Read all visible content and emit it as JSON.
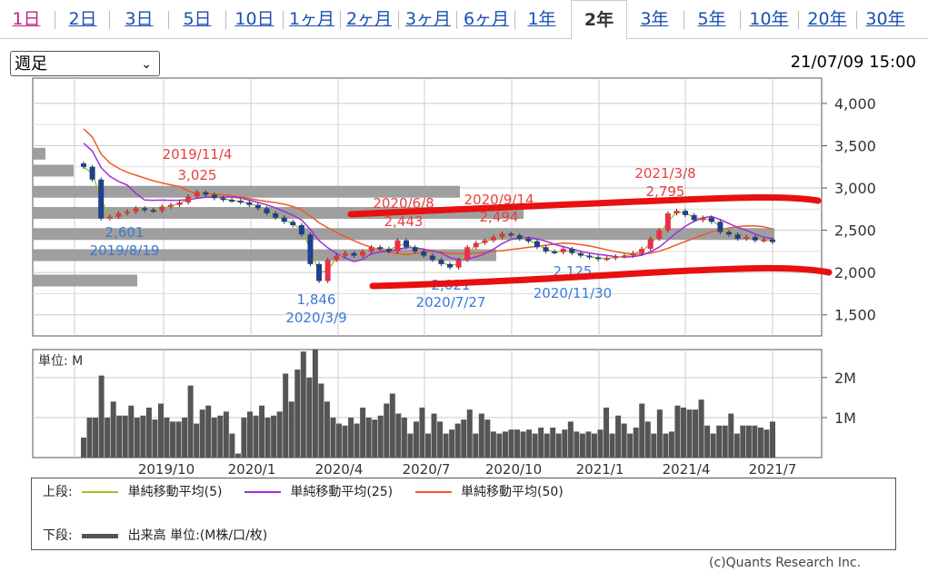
{
  "tabs": [
    {
      "label": "1日",
      "x": 0
    },
    {
      "label": "2日"
    },
    {
      "label": "3日"
    },
    {
      "label": "5日"
    },
    {
      "label": "10日"
    },
    {
      "label": "1ヶ月"
    },
    {
      "label": "2ヶ月"
    },
    {
      "label": "3ヶ月"
    },
    {
      "label": "6ヶ月"
    },
    {
      "label": "1年"
    },
    {
      "label": "2年"
    },
    {
      "label": "3年"
    },
    {
      "label": "5年"
    },
    {
      "label": "10年"
    },
    {
      "label": "20年"
    },
    {
      "label": "30年"
    }
  ],
  "active_tab": "2年",
  "period_select": {
    "value": "週足"
  },
  "timestamp": "21/07/09 15:00",
  "colors": {
    "up": "#e8304a",
    "down": "#1f3f8f",
    "ma5": "#9dc21a",
    "ma25": "#a030d8",
    "ma50": "#f05a24",
    "volume": "#555555",
    "profile": "#9a9a9a",
    "annotation_high": "#e84040",
    "annotation_low": "#3c78d8",
    "highlight_stroke": "#e81010"
  },
  "chart_data": [
    {
      "type": "candlestick",
      "ylim": [
        1250,
        4300
      ],
      "yticks": [
        "1,500",
        "2,000",
        "2,500",
        "3,000",
        "3,500",
        "4,000"
      ],
      "ytick_values": [
        1500,
        2000,
        2500,
        3000,
        3500,
        4000
      ],
      "annotations": [
        {
          "date": "2019/11/4",
          "value": "3,025",
          "kind": "high"
        },
        {
          "date": "2019/8/19",
          "value": "2,601",
          "kind": "low"
        },
        {
          "date": "2020/3/9",
          "value": "1,846",
          "kind": "low"
        },
        {
          "date": "2020/6/8",
          "value": "2,443",
          "kind": "high"
        },
        {
          "date": "2020/7/27",
          "value": "2,021",
          "kind": "low"
        },
        {
          "date": "2020/9/14",
          "value": "2,494",
          "kind": "high"
        },
        {
          "date": "2020/11/30",
          "value": "2,125",
          "kind": "low"
        },
        {
          "date": "2021/3/8",
          "value": "2,795",
          "kind": "high"
        }
      ],
      "closes": [
        3250,
        3100,
        2640,
        2660,
        2700,
        2720,
        2760,
        2740,
        2730,
        2780,
        2800,
        2830,
        2900,
        2950,
        2920,
        2880,
        2860,
        2850,
        2830,
        2800,
        2760,
        2700,
        2650,
        2600,
        2560,
        2450,
        2100,
        1900,
        2150,
        2200,
        2230,
        2200,
        2250,
        2300,
        2280,
        2250,
        2380,
        2300,
        2250,
        2200,
        2150,
        2100,
        2060,
        2150,
        2300,
        2350,
        2380,
        2420,
        2460,
        2440,
        2400,
        2370,
        2300,
        2250,
        2240,
        2280,
        2230,
        2200,
        2180,
        2160,
        2170,
        2190,
        2200,
        2230,
        2280,
        2400,
        2500,
        2700,
        2730,
        2680,
        2620,
        2650,
        2600,
        2480,
        2450,
        2400,
        2420,
        2380,
        2390,
        2360
      ],
      "ma_series": [
        {
          "name": "単純移動平均(5)"
        },
        {
          "name": "単純移動平均(25)"
        },
        {
          "name": "単純移動平均(50)"
        }
      ]
    },
    {
      "type": "bar",
      "ylabel": "単位: M",
      "yticks": [
        "1M",
        "2M"
      ],
      "ytick_values": [
        1,
        2
      ],
      "ylim": [
        0,
        2.7
      ],
      "xticks": [
        "2019/10",
        "2020/1",
        "2020/4",
        "2020/7",
        "2020/10",
        "2021/1",
        "2021/4",
        "2021/7"
      ],
      "values": [
        0.5,
        1.0,
        1.0,
        2.05,
        1.0,
        1.4,
        1.05,
        1.05,
        1.3,
        1.0,
        1.05,
        1.25,
        0.95,
        1.35,
        1.0,
        0.9,
        0.9,
        1.0,
        1.8,
        0.85,
        1.2,
        1.3,
        1.0,
        1.05,
        1.15,
        0.6,
        0.1,
        1.0,
        1.15,
        1.05,
        1.3,
        1.0,
        1.05,
        1.15,
        2.1,
        1.4,
        2.2,
        2.65,
        2.0,
        2.7,
        1.85,
        1.4,
        1.0,
        0.85,
        0.8,
        1.0,
        0.85,
        1.25,
        1.0,
        0.95,
        1.05,
        1.35,
        1.6,
        1.1,
        1.0,
        0.6,
        0.9,
        1.25,
        0.6,
        1.1,
        0.9,
        0.6,
        0.7,
        0.85,
        0.95,
        1.2,
        0.6,
        1.1,
        0.95,
        0.65,
        0.6,
        0.65,
        0.7,
        0.7,
        0.65,
        0.7,
        0.6,
        0.75,
        0.6,
        0.75,
        0.6,
        0.7,
        0.9,
        0.65,
        0.6,
        0.65,
        0.6,
        0.7,
        1.25,
        0.6,
        1.05,
        0.85,
        0.6,
        0.75,
        1.35,
        0.9,
        0.6,
        1.2,
        0.6,
        0.65,
        1.3,
        1.25,
        1.2,
        1.2,
        1.45,
        0.8,
        0.6,
        0.8,
        0.8,
        1.1,
        0.6,
        0.8,
        0.8,
        0.8,
        0.75,
        0.7,
        0.9
      ]
    }
  ],
  "legend": {
    "upper_label": "上段:",
    "lower_label": "下段:",
    "ma5": "単純移動平均(5)",
    "ma25": "単純移動平均(25)",
    "ma50": "単純移動平均(50)",
    "volume": "出来高 単位:(M株/口/枚)"
  },
  "copyright": "(c)Quants Research Inc."
}
